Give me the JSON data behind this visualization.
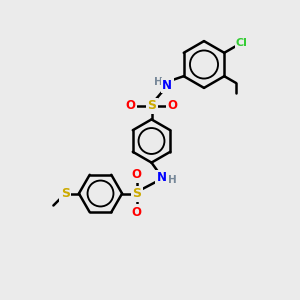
{
  "bg_color": "#ebebeb",
  "bond_color": "#000000",
  "bond_width": 1.8,
  "atom_colors": {
    "N": "#0000ff",
    "H_color": "#778899",
    "S": "#ccaa00",
    "O": "#ff0000",
    "Cl": "#33cc33",
    "CH3_color": "#33aa33"
  },
  "font_size": 8.5
}
